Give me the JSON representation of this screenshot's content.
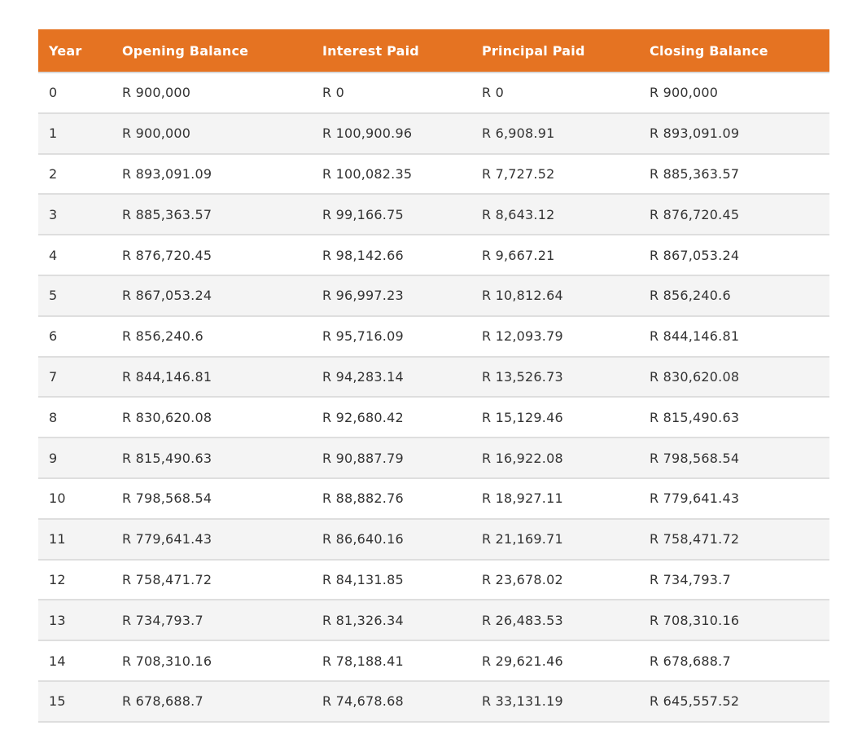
{
  "colors": {
    "header_bg": "#e57322",
    "header_text": "#ffffff",
    "row_alt_bg": "#f4f4f4",
    "row_border": "#dedede",
    "text": "#333333"
  },
  "table": {
    "headers": [
      "Year",
      "Opening Balance",
      "Interest Paid",
      "Principal Paid",
      "Closing Balance"
    ],
    "rows": [
      [
        "0",
        "R 900,000",
        "R 0",
        "R 0",
        "R 900,000"
      ],
      [
        "1",
        "R 900,000",
        "R 100,900.96",
        "R 6,908.91",
        "R 893,091.09"
      ],
      [
        "2",
        "R 893,091.09",
        "R 100,082.35",
        "R 7,727.52",
        "R 885,363.57"
      ],
      [
        "3",
        "R 885,363.57",
        "R 99,166.75",
        "R 8,643.12",
        "R 876,720.45"
      ],
      [
        "4",
        "R 876,720.45",
        "R 98,142.66",
        "R 9,667.21",
        "R 867,053.24"
      ],
      [
        "5",
        "R 867,053.24",
        "R 96,997.23",
        "R 10,812.64",
        "R 856,240.6"
      ],
      [
        "6",
        "R 856,240.6",
        "R 95,716.09",
        "R 12,093.79",
        "R 844,146.81"
      ],
      [
        "7",
        "R 844,146.81",
        "R 94,283.14",
        "R 13,526.73",
        "R 830,620.08"
      ],
      [
        "8",
        "R 830,620.08",
        "R 92,680.42",
        "R 15,129.46",
        "R 815,490.63"
      ],
      [
        "9",
        "R 815,490.63",
        "R 90,887.79",
        "R 16,922.08",
        "R 798,568.54"
      ],
      [
        "10",
        "R 798,568.54",
        "R 88,882.76",
        "R 18,927.11",
        "R 779,641.43"
      ],
      [
        "11",
        "R 779,641.43",
        "R 86,640.16",
        "R 21,169.71",
        "R 758,471.72"
      ],
      [
        "12",
        "R 758,471.72",
        "R 84,131.85",
        "R 23,678.02",
        "R 734,793.7"
      ],
      [
        "13",
        "R 734,793.7",
        "R 81,326.34",
        "R 26,483.53",
        "R 708,310.16"
      ],
      [
        "14",
        "R 708,310.16",
        "R 78,188.41",
        "R 29,621.46",
        "R 678,688.7"
      ],
      [
        "15",
        "R 678,688.7",
        "R 74,678.68",
        "R 33,131.19",
        "R 645,557.52"
      ]
    ]
  }
}
